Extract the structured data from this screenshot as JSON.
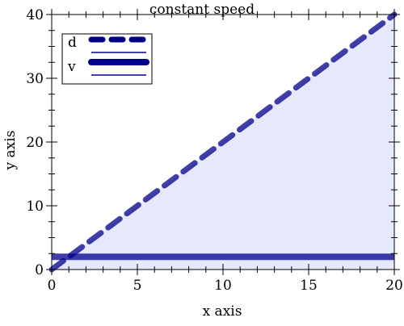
{
  "chart_data": {
    "type": "line",
    "title": "constant speed",
    "xlabel": "x axis",
    "ylabel": "y axis",
    "xlim": [
      0,
      20
    ],
    "ylim": [
      0,
      40
    ],
    "x_ticks": [
      0,
      5,
      10,
      15,
      20
    ],
    "y_ticks": [
      0,
      10,
      20,
      30,
      40
    ],
    "grid": false,
    "legend_position": "top-left",
    "series": [
      {
        "name": "d",
        "style": "dashed",
        "color": "#00008b",
        "fill_to_zero": true,
        "fill_color": "#e6e8fc",
        "x": [
          0,
          20
        ],
        "y": [
          0,
          40
        ]
      },
      {
        "name": "v",
        "style": "solid",
        "color": "#00008b",
        "x": [
          0,
          20
        ],
        "y": [
          2,
          2
        ]
      }
    ]
  }
}
